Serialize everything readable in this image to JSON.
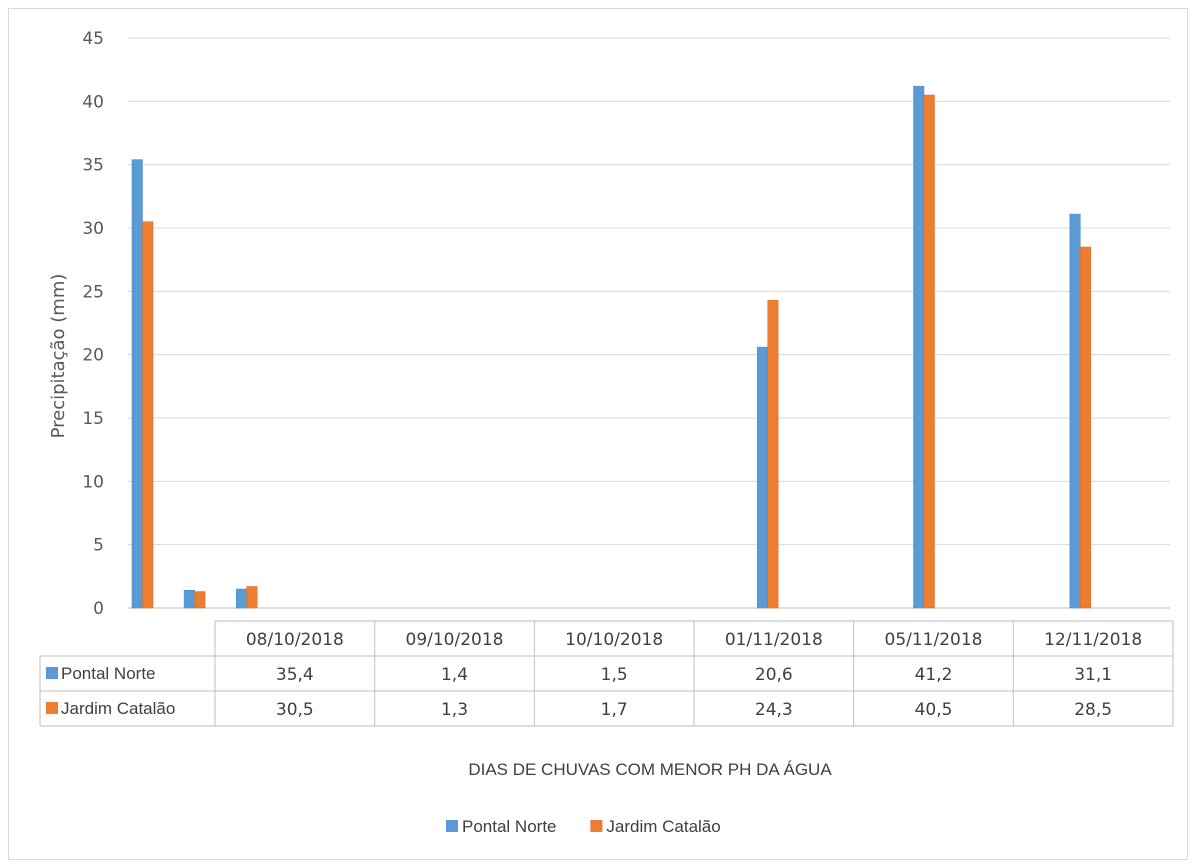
{
  "chart_data": {
    "type": "bar",
    "title": "",
    "ylabel": "Precipitação (mm)",
    "xlabel": "DIAS DE CHUVAS COM MENOR PH DA ÁGUA",
    "ylim": [
      0,
      45
    ],
    "yticks": [
      0,
      5,
      10,
      15,
      20,
      25,
      30,
      35,
      40,
      45
    ],
    "grid": true,
    "legend_position": "bottom",
    "categories": [
      "08/10/2018",
      "09/10/2018",
      "10/10/2018",
      "01/11/2018",
      "05/11/2018",
      "12/11/2018"
    ],
    "series": [
      {
        "name": "Pontal Norte",
        "color": "#5b9bd5",
        "values": [
          35.4,
          1.4,
          1.5,
          20.6,
          41.2,
          31.1
        ],
        "display": [
          "35,4",
          "1,4",
          "1,5",
          "20,6",
          "41,2",
          "31,1"
        ]
      },
      {
        "name": "Jardim Catalão",
        "color": "#ed7d31",
        "values": [
          30.5,
          1.3,
          1.7,
          24.3,
          40.5,
          28.5
        ],
        "display": [
          "30,5",
          "1,3",
          "1,7",
          "24,3",
          "40,5",
          "28,5"
        ]
      }
    ],
    "bar_x_positions_note": "values as in original",
    "visual_bar_slots": [
      0,
      1,
      2,
      12,
      15,
      18
    ]
  }
}
